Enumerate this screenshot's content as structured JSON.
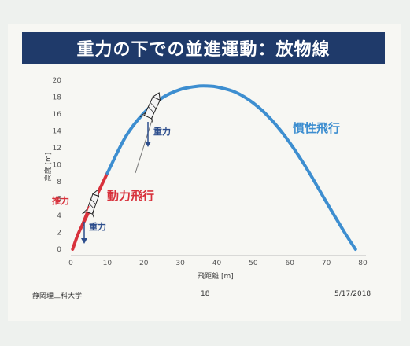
{
  "slide": {
    "title": "重力の下での並進運動：放物線",
    "footer_left": "静岡理工科大学",
    "page_number": "18",
    "date": "5/17/2018"
  },
  "chart_data": {
    "type": "line",
    "xlabel": "飛距離 [m]",
    "ylabel": "高度 [m]",
    "xlim": [
      0,
      80
    ],
    "ylim": [
      0,
      20
    ],
    "xticks": [
      0,
      10,
      20,
      30,
      40,
      50,
      60,
      70,
      80
    ],
    "yticks": [
      0,
      2,
      4,
      6,
      8,
      10,
      12,
      14,
      16,
      18,
      20
    ],
    "grid": false,
    "series": [
      {
        "name": "動力飛行",
        "color": "#d8323c",
        "x": [
          0.5,
          2,
          4,
          6,
          8,
          10
        ],
        "y": [
          0,
          1.8,
          3.6,
          5.4,
          7.2,
          9
        ]
      },
      {
        "name": "慣性飛行",
        "color": "#3d8ed0",
        "x": [
          10,
          15,
          20,
          25,
          30,
          35,
          38,
          40,
          45,
          50,
          55,
          60,
          65,
          70,
          75,
          78
        ],
        "y": [
          9,
          13.3,
          16.1,
          17.9,
          18.9,
          19.3,
          19.3,
          19.2,
          18.6,
          17.3,
          15.3,
          12.6,
          9.3,
          5.6,
          2.0,
          0
        ]
      }
    ],
    "annotations": {
      "thrust": "推力",
      "gravity_low": "重力",
      "gravity_high": "重力",
      "powered_flight": "動力飛行",
      "inertial_flight": "慣性飛行"
    }
  }
}
